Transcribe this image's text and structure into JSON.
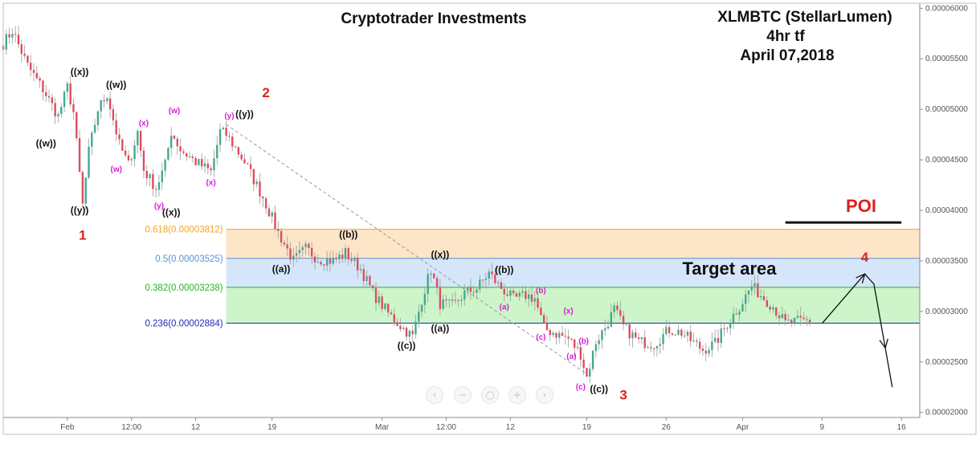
{
  "header": {
    "company": "Cryptotrader Investments",
    "symbol": "XLMBTC (StellarLumen)",
    "timeframe": "4hr tf",
    "date": "April 07,2018"
  },
  "colors": {
    "up": "#3fa98f",
    "down": "#e04a5d",
    "fib618": "#f5a623",
    "fib50": "#5b8fd8",
    "fib382": "#25b325",
    "fib236": "#1c2bb5",
    "zone_orange": "#fde5c8",
    "zone_blue": "#d6e6fa",
    "zone_green": "#cdf5c9",
    "wave_red": "#e0201b",
    "wave_magenta": "#d81ed8",
    "label_black": "#111111"
  },
  "chart_data": {
    "type": "candlestick",
    "symbol": "XLMBTC",
    "timeframe": "4hr",
    "ylim": [
      1.95e-05,
      6.05e-05
    ],
    "y_ticks": [
      6e-05,
      5.5e-05,
      5e-05,
      4.5e-05,
      4e-05,
      3.5e-05,
      3e-05,
      2.5e-05,
      2e-05
    ],
    "y_tick_labels": [
      "0.00006000",
      "0.00005500",
      "0.00005000",
      "0.00004500",
      "0.00004000",
      "0.00003500",
      "0.00003000",
      "0.00002500",
      "0.00002000"
    ],
    "x_ticks": [
      {
        "label": "Feb",
        "bar": 21
      },
      {
        "label": "12:00",
        "bar": 42
      },
      {
        "label": "12",
        "bar": 63
      },
      {
        "label": "19",
        "bar": 88
      },
      {
        "label": "Mar",
        "bar": 124
      },
      {
        "label": "12:00",
        "bar": 145
      },
      {
        "label": "12",
        "bar": 166
      },
      {
        "label": "19",
        "bar": 191
      },
      {
        "label": "26",
        "bar": 217
      },
      {
        "label": "Apr",
        "bar": 242
      },
      {
        "label": "9",
        "bar": 268
      },
      {
        "label": "16",
        "bar": 294
      }
    ],
    "bar_count_visible": 300,
    "last_bar": 264,
    "path_anchors": [
      [
        0,
        5.65e-05
      ],
      [
        3,
        5.78e-05
      ],
      [
        8,
        5.43e-05
      ],
      [
        13,
        5.2e-05
      ],
      [
        18,
        4.93e-05
      ],
      [
        21,
        5.22e-05
      ],
      [
        23,
        4.97e-05
      ],
      [
        26,
        4.05e-05
      ],
      [
        28,
        4.58e-05
      ],
      [
        31,
        5e-05
      ],
      [
        34,
        5.15e-05
      ],
      [
        38,
        4.65e-05
      ],
      [
        41,
        4.45e-05
      ],
      [
        44,
        4.78e-05
      ],
      [
        46,
        4.4e-05
      ],
      [
        50,
        4.22e-05
      ],
      [
        53,
        4.45e-05
      ],
      [
        55,
        4.78e-05
      ],
      [
        58,
        4.6e-05
      ],
      [
        63,
        4.48e-05
      ],
      [
        68,
        4.38e-05
      ],
      [
        71,
        4.78e-05
      ],
      [
        73,
        4.75e-05
      ],
      [
        79,
        4.48e-05
      ],
      [
        85,
        4.13e-05
      ],
      [
        90,
        3.78e-05
      ],
      [
        95,
        3.5e-05
      ],
      [
        99,
        3.62e-05
      ],
      [
        103,
        3.52e-05
      ],
      [
        108,
        3.5e-05
      ],
      [
        112,
        3.58e-05
      ],
      [
        117,
        3.42e-05
      ],
      [
        121,
        3.18e-05
      ],
      [
        126,
        2.98e-05
      ],
      [
        131,
        2.83e-05
      ],
      [
        134,
        2.75e-05
      ],
      [
        137,
        3.12e-05
      ],
      [
        140,
        3.42e-05
      ],
      [
        143,
        3.08e-05
      ],
      [
        147,
        3.05e-05
      ],
      [
        151,
        3.18e-05
      ],
      [
        155,
        3.23e-05
      ],
      [
        159,
        3.38e-05
      ],
      [
        162,
        3.26e-05
      ],
      [
        167,
        3.12e-05
      ],
      [
        171,
        3.16e-05
      ],
      [
        174,
        3.13e-05
      ],
      [
        177,
        2.83e-05
      ],
      [
        181,
        2.78e-05
      ],
      [
        185,
        2.73e-05
      ],
      [
        189,
        2.58e-05
      ],
      [
        191,
        2.35e-05
      ],
      [
        194,
        2.7e-05
      ],
      [
        197,
        2.84e-05
      ],
      [
        200,
        3.02e-05
      ],
      [
        203,
        2.85e-05
      ],
      [
        208,
        2.7e-05
      ],
      [
        213,
        2.68e-05
      ],
      [
        218,
        2.82e-05
      ],
      [
        222,
        2.79e-05
      ],
      [
        226,
        2.69e-05
      ],
      [
        229,
        2.62e-05
      ],
      [
        233,
        2.68e-05
      ],
      [
        237,
        2.88e-05
      ],
      [
        241,
        3.05e-05
      ],
      [
        245,
        3.25e-05
      ],
      [
        248,
        3.16e-05
      ],
      [
        252,
        3.05e-05
      ],
      [
        256,
        2.88e-05
      ],
      [
        260,
        2.9e-05
      ],
      [
        264,
        2.91e-05
      ]
    ],
    "fib_levels": [
      {
        "label": "0.618(0.00003812)",
        "value": 3.812e-05,
        "color_key": "fib618"
      },
      {
        "label": "0.5(0.00003525)",
        "value": 3.525e-05,
        "color_key": "fib50"
      },
      {
        "label": "0.382(0.00003238)",
        "value": 3.238e-05,
        "color_key": "fib382"
      },
      {
        "label": "0.236(0.00002884)",
        "value": 2.884e-05,
        "color_key": "fib236"
      }
    ],
    "fib_zone_start_bar": 73,
    "trendline": {
      "from": [
        73,
        4.85e-05
      ],
      "to": [
        191,
        2.38e-05
      ]
    },
    "projection": [
      [
        268,
        2.88e-05
      ],
      [
        282,
        3.37e-05
      ],
      [
        285,
        3.27e-05
      ],
      [
        291,
        2.25e-05
      ]
    ],
    "annotations": {
      "target_area": "Target area",
      "poi": "POI",
      "poi_line": {
        "from_bar": 256,
        "to_bar": 294,
        "value": 3.88e-05
      }
    },
    "wave_labels": [
      {
        "text": "1",
        "style": "red",
        "bar": 26,
        "y": 3.71e-05
      },
      {
        "text": "2",
        "style": "red",
        "bar": 86,
        "y": 5.12e-05
      },
      {
        "text": "3",
        "style": "red",
        "bar": 203,
        "y": 2.13e-05
      },
      {
        "text": "4",
        "style": "red",
        "bar": 282,
        "y": 3.49e-05
      },
      {
        "text": "((x))",
        "style": "black",
        "bar": 25,
        "y": 5.34e-05
      },
      {
        "text": "((w))",
        "style": "black",
        "bar": 37,
        "y": 5.21e-05
      },
      {
        "text": "((w))",
        "style": "black",
        "bar": 14,
        "y": 4.63e-05
      },
      {
        "text": "((y))",
        "style": "black",
        "bar": 25,
        "y": 3.97e-05
      },
      {
        "text": "((y))",
        "style": "black",
        "bar": 79,
        "y": 4.92e-05
      },
      {
        "text": "((x))",
        "style": "black",
        "bar": 55,
        "y": 3.95e-05
      },
      {
        "text": "((a))",
        "style": "black",
        "bar": 91,
        "y": 3.39e-05
      },
      {
        "text": "((b))",
        "style": "black",
        "bar": 113,
        "y": 3.73e-05
      },
      {
        "text": "((c))",
        "style": "black",
        "bar": 132,
        "y": 2.63e-05
      },
      {
        "text": "((x))",
        "style": "black",
        "bar": 143,
        "y": 3.53e-05
      },
      {
        "text": "((b))",
        "style": "black",
        "bar": 164,
        "y": 3.38e-05
      },
      {
        "text": "((a))",
        "style": "black",
        "bar": 143,
        "y": 2.8e-05
      },
      {
        "text": "((c))",
        "style": "black",
        "bar": 195,
        "y": 2.2e-05
      },
      {
        "text": "(x)",
        "style": "magenta",
        "bar": 46,
        "y": 4.84e-05
      },
      {
        "text": "(w)",
        "style": "magenta",
        "bar": 56,
        "y": 4.96e-05
      },
      {
        "text": "(w)",
        "style": "magenta",
        "bar": 37,
        "y": 4.38e-05
      },
      {
        "text": "(y)",
        "style": "magenta",
        "bar": 51,
        "y": 4.02e-05
      },
      {
        "text": "(x)",
        "style": "magenta",
        "bar": 68,
        "y": 4.25e-05
      },
      {
        "text": "(y)",
        "style": "magenta",
        "bar": 74,
        "y": 4.91e-05
      },
      {
        "text": "(b)",
        "style": "magenta",
        "bar": 176,
        "y": 3.18e-05
      },
      {
        "text": "(a)",
        "style": "magenta",
        "bar": 164,
        "y": 3.02e-05
      },
      {
        "text": "(c)",
        "style": "magenta",
        "bar": 176,
        "y": 2.72e-05
      },
      {
        "text": "(x)",
        "style": "magenta",
        "bar": 185,
        "y": 2.98e-05
      },
      {
        "text": "(b)",
        "style": "magenta",
        "bar": 190,
        "y": 2.68e-05
      },
      {
        "text": "(a)",
        "style": "magenta",
        "bar": 186,
        "y": 2.53e-05
      },
      {
        "text": "(c)",
        "style": "magenta",
        "bar": 189,
        "y": 2.23e-05
      }
    ]
  }
}
